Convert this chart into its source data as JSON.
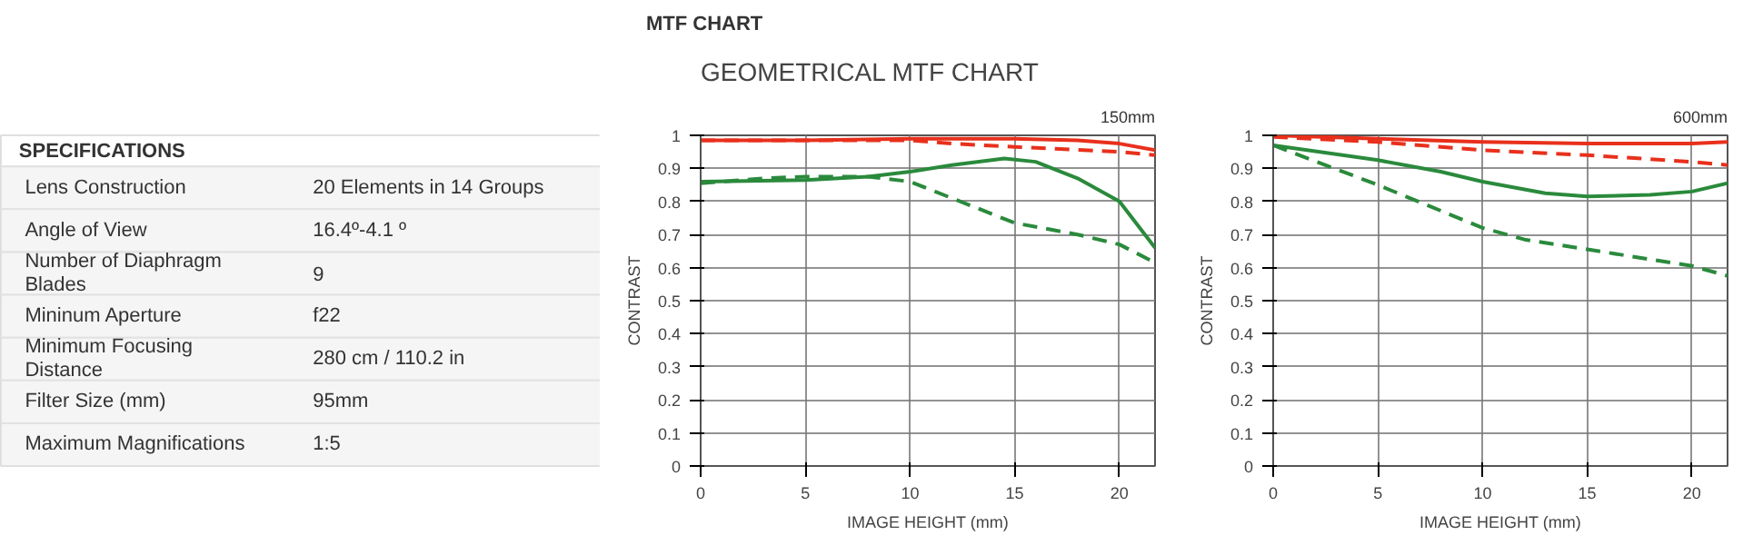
{
  "chart_data": [
    {
      "type": "other",
      "title": "SPECIFICATIONS",
      "annotations": [
        "Lens Construction",
        "20 Elements in 14 Groups",
        "Angle of View",
        "16.4º-4.1 º",
        "Number of Diaphragm Blades",
        "9",
        "Mininum Aperture",
        "f22",
        "Minimum Focusing Distance",
        "280 cm / 110.2 in",
        "Filter Size (mm)",
        "95mm",
        "Maximum Magnifications",
        "1:5"
      ]
    },
    {
      "type": "line",
      "title": "MTF CHART",
      "subtitle": "GEOMETRICAL MTF CHART",
      "xlabel": "IMAGE HEIGHT (mm)",
      "ylabel": "CONTRAST",
      "annotations": [
        "150mm"
      ],
      "xlim": [
        0,
        21.7
      ],
      "xticks": [
        0,
        5,
        10,
        15,
        20
      ],
      "ylim": [
        0,
        1
      ],
      "yticks": [
        0,
        0.1,
        0.2,
        0.3,
        0.4,
        0.5,
        0.6,
        0.7,
        0.8,
        0.9,
        1
      ],
      "grid": true,
      "series": [
        {
          "color": "#e8301c",
          "line_style": "solid",
          "x": [
            0,
            5,
            10,
            15,
            18,
            20,
            21.7
          ],
          "values": [
            0.985,
            0.985,
            0.99,
            0.99,
            0.985,
            0.975,
            0.955
          ]
        },
        {
          "color": "#e8301c",
          "line_style": "dashed",
          "x": [
            0,
            10,
            12,
            15,
            20,
            21.7
          ],
          "values": [
            0.985,
            0.985,
            0.975,
            0.965,
            0.95,
            0.94
          ]
        },
        {
          "color": "#2a8a3c",
          "line_style": "solid",
          "x": [
            0,
            5,
            8,
            10,
            12,
            14.5,
            16,
            18,
            20,
            21.7
          ],
          "values": [
            0.86,
            0.865,
            0.875,
            0.89,
            0.91,
            0.93,
            0.92,
            0.87,
            0.8,
            0.66
          ]
        },
        {
          "color": "#2a8a3c",
          "line_style": "dashed",
          "x": [
            0,
            3,
            5,
            8,
            10,
            12,
            15,
            18,
            20,
            21.7
          ],
          "values": [
            0.855,
            0.87,
            0.875,
            0.875,
            0.86,
            0.81,
            0.735,
            0.7,
            0.67,
            0.615
          ]
        }
      ]
    },
    {
      "type": "line",
      "xlabel": "IMAGE HEIGHT (mm)",
      "ylabel": "CONTRAST",
      "annotations": [
        "600mm"
      ],
      "xlim": [
        0,
        21.7
      ],
      "xticks": [
        0,
        5,
        10,
        15,
        20
      ],
      "ylim": [
        0,
        1
      ],
      "yticks": [
        0,
        0.1,
        0.2,
        0.3,
        0.4,
        0.5,
        0.6,
        0.7,
        0.8,
        0.9,
        1
      ],
      "grid": true,
      "series": [
        {
          "color": "#e8301c",
          "line_style": "solid",
          "x": [
            0,
            5,
            10,
            15,
            20,
            21.7
          ],
          "values": [
            1.0,
            0.99,
            0.98,
            0.975,
            0.975,
            0.98
          ]
        },
        {
          "color": "#e8301c",
          "line_style": "dashed",
          "x": [
            0,
            5,
            10,
            15,
            20,
            21.7
          ],
          "values": [
            0.995,
            0.98,
            0.955,
            0.94,
            0.92,
            0.91
          ]
        },
        {
          "color": "#2a8a3c",
          "line_style": "solid",
          "x": [
            0,
            5,
            8,
            10,
            13,
            15,
            18,
            20,
            21.7
          ],
          "values": [
            0.97,
            0.925,
            0.89,
            0.86,
            0.825,
            0.815,
            0.82,
            0.83,
            0.855
          ]
        },
        {
          "color": "#2a8a3c",
          "line_style": "dashed",
          "x": [
            0,
            5,
            10,
            12,
            15,
            20,
            21.7
          ],
          "values": [
            0.97,
            0.85,
            0.72,
            0.685,
            0.655,
            0.605,
            0.575
          ]
        }
      ]
    }
  ]
}
